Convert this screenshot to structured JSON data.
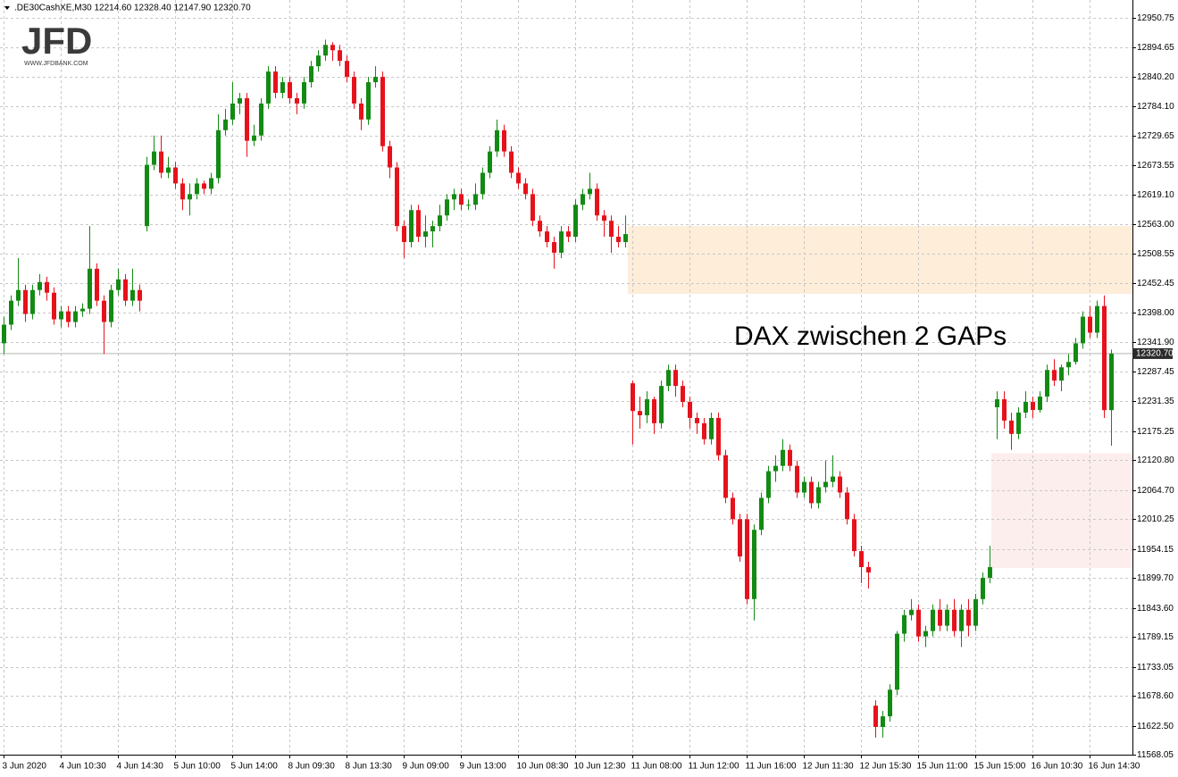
{
  "chart_data": {
    "type": "candlestick",
    "header": ".DE30CashXE,M30  12214.60 12328.40 12147.90 12320.70",
    "logo": {
      "text": "JFD",
      "url": "WWW.JFDBANK.COM"
    },
    "annotation": "DAX zwischen 2 GAPs",
    "up_color": "#138a13",
    "down_color": "#e6121b",
    "grid": true,
    "ylim": [
      11568.05,
      12950.75
    ],
    "yticks": [
      {
        "value": 11568.05,
        "label": "11568.05"
      },
      {
        "value": 11622.5,
        "label": "11622.50"
      },
      {
        "value": 11678.6,
        "label": "11678.60"
      },
      {
        "value": 11733.05,
        "label": "11733.05"
      },
      {
        "value": 11789.15,
        "label": "11789.15"
      },
      {
        "value": 11843.6,
        "label": "11843.60"
      },
      {
        "value": 11899.7,
        "label": "11899.70"
      },
      {
        "value": 11954.15,
        "label": "11954.15"
      },
      {
        "value": 12010.25,
        "label": "12010.25"
      },
      {
        "value": 12064.7,
        "label": "12064.70"
      },
      {
        "value": 12120.8,
        "label": "12120.80"
      },
      {
        "value": 12175.25,
        "label": "12175.25"
      },
      {
        "value": 12231.35,
        "label": "12231.35"
      },
      {
        "value": 12287.45,
        "label": "12287.45"
      },
      {
        "value": 12341.9,
        "label": "12341.90"
      },
      {
        "value": 12398,
        "label": "12398.00"
      },
      {
        "value": 12452.45,
        "label": "12452.45"
      },
      {
        "value": 12508.55,
        "label": "12508.55"
      },
      {
        "value": 12563,
        "label": "12563.00"
      },
      {
        "value": 12619.1,
        "label": "12619.10"
      },
      {
        "value": 12673.55,
        "label": "12673.55"
      },
      {
        "value": 12729.65,
        "label": "12729.65"
      },
      {
        "value": 12784.1,
        "label": "12784.10"
      },
      {
        "value": 12840.2,
        "label": "12840.20"
      },
      {
        "value": 12894.65,
        "label": "12894.65"
      },
      {
        "value": 12950.75,
        "label": "12950.75"
      }
    ],
    "price_label": {
      "value": 12320.7,
      "label": "12320.70"
    },
    "zones": [
      {
        "from": 12433,
        "to": 12560,
        "color": "#fdedd9"
      },
      {
        "from": 11918,
        "to": 12134,
        "color": "#fdeeee"
      }
    ],
    "categories": [
      "3 Jun 2020",
      null,
      null,
      null,
      null,
      null,
      null,
      null,
      "4 Jun 10:30",
      null,
      null,
      null,
      null,
      null,
      null,
      null,
      "4 Jun 14:30",
      null,
      null,
      null,
      null,
      null,
      null,
      null,
      "5 Jun 10:00",
      null,
      null,
      null,
      null,
      null,
      null,
      null,
      "5 Jun 14:00",
      null,
      null,
      null,
      null,
      null,
      null,
      null,
      "8 Jun 09:30",
      null,
      null,
      null,
      null,
      null,
      null,
      null,
      "8 Jun 13:30",
      null,
      null,
      null,
      null,
      null,
      null,
      null,
      "9 Jun 09:00",
      null,
      null,
      null,
      null,
      null,
      null,
      null,
      "9 Jun 13:00",
      null,
      null,
      null,
      null,
      null,
      null,
      null,
      "10 Jun 08:30",
      null,
      null,
      null,
      null,
      null,
      null,
      null,
      "10 Jun 12:30",
      null,
      null,
      null,
      null,
      null,
      null,
      null,
      "11 Jun 08:00",
      null,
      null,
      null,
      null,
      null,
      null,
      null,
      "11 Jun 12:00",
      null,
      null,
      null,
      null,
      null,
      null,
      null,
      "11 Jun 16:00",
      null,
      null,
      null,
      null,
      null,
      null,
      null,
      "12 Jun 11:30",
      null,
      null,
      null,
      null,
      null,
      null,
      null,
      "12 Jun 15:30",
      null,
      null,
      null,
      null,
      null,
      null,
      null,
      "15 Jun 11:00",
      null,
      null,
      null,
      null,
      null,
      null,
      null,
      "15 Jun 15:00",
      null,
      null,
      null,
      null,
      null,
      null,
      null,
      "16 Jun 10:30",
      null,
      null,
      null,
      null,
      null,
      null,
      null,
      "16 Jun 14:30",
      null,
      null,
      null
    ],
    "candles": [
      [
        12340,
        12390,
        12320,
        12375
      ],
      [
        12375,
        12430,
        12365,
        12420
      ],
      [
        12420,
        12500,
        12410,
        12440
      ],
      [
        12440,
        12450,
        12380,
        12395
      ],
      [
        12395,
        12450,
        12385,
        12440
      ],
      [
        12440,
        12470,
        12430,
        12455
      ],
      [
        12455,
        12465,
        12420,
        12435
      ],
      [
        12435,
        12445,
        12375,
        12385
      ],
      [
        12385,
        12410,
        12370,
        12400
      ],
      [
        12400,
        12410,
        12370,
        12380
      ],
      [
        12380,
        12410,
        12370,
        12400
      ],
      [
        12400,
        12415,
        12390,
        12405
      ],
      [
        12405,
        12560,
        12395,
        12480
      ],
      [
        12480,
        12490,
        12410,
        12420
      ],
      [
        12420,
        12430,
        12320,
        12380
      ],
      [
        12380,
        12450,
        12370,
        12440
      ],
      [
        12440,
        12480,
        12430,
        12460
      ],
      [
        12460,
        12470,
        12410,
        12420
      ],
      [
        12420,
        12480,
        12410,
        12440
      ],
      [
        12440,
        12450,
        12400,
        12420
      ],
      [
        12560,
        12690,
        12550,
        12675
      ],
      [
        12675,
        12730,
        12665,
        12700
      ],
      [
        12700,
        12730,
        12650,
        12660
      ],
      [
        12660,
        12690,
        12650,
        12670
      ],
      [
        12670,
        12680,
        12630,
        12640
      ],
      [
        12640,
        12650,
        12590,
        12610
      ],
      [
        12610,
        12640,
        12580,
        12620
      ],
      [
        12620,
        12650,
        12610,
        12640
      ],
      [
        12640,
        12645,
        12620,
        12630
      ],
      [
        12630,
        12660,
        12620,
        12650
      ],
      [
        12650,
        12770,
        12640,
        12740
      ],
      [
        12740,
        12780,
        12730,
        12760
      ],
      [
        12760,
        12830,
        12750,
        12790
      ],
      [
        12790,
        12810,
        12770,
        12800
      ],
      [
        12800,
        12810,
        12690,
        12720
      ],
      [
        12720,
        12750,
        12710,
        12730
      ],
      [
        12730,
        12800,
        12720,
        12790
      ],
      [
        12790,
        12860,
        12780,
        12850
      ],
      [
        12850,
        12860,
        12800,
        12810
      ],
      [
        12810,
        12840,
        12800,
        12830
      ],
      [
        12830,
        12840,
        12790,
        12800
      ],
      [
        12800,
        12810,
        12770,
        12790
      ],
      [
        12790,
        12840,
        12780,
        12830
      ],
      [
        12830,
        12870,
        12820,
        12860
      ],
      [
        12860,
        12890,
        12850,
        12880
      ],
      [
        12880,
        12910,
        12870,
        12900
      ],
      [
        12900,
        12905,
        12870,
        12890
      ],
      [
        12890,
        12900,
        12860,
        12870
      ],
      [
        12870,
        12880,
        12830,
        12840
      ],
      [
        12840,
        12850,
        12780,
        12790
      ],
      [
        12790,
        12800,
        12740,
        12760
      ],
      [
        12760,
        12840,
        12750,
        12830
      ],
      [
        12830,
        12860,
        12820,
        12840
      ],
      [
        12840,
        12850,
        12700,
        12710
      ],
      [
        12710,
        12720,
        12650,
        12670
      ],
      [
        12670,
        12680,
        12550,
        12560
      ],
      [
        12560,
        12570,
        12500,
        12530
      ],
      [
        12530,
        12600,
        12520,
        12590
      ],
      [
        12590,
        12600,
        12530,
        12540
      ],
      [
        12540,
        12580,
        12520,
        12550
      ],
      [
        12550,
        12570,
        12520,
        12560
      ],
      [
        12560,
        12600,
        12550,
        12580
      ],
      [
        12580,
        12620,
        12570,
        12610
      ],
      [
        12610,
        12630,
        12590,
        12620
      ],
      [
        12620,
        12630,
        12590,
        12600
      ],
      [
        12600,
        12610,
        12590,
        12600
      ],
      [
        12600,
        12640,
        12590,
        12620
      ],
      [
        12620,
        12670,
        12610,
        12660
      ],
      [
        12660,
        12710,
        12650,
        12700
      ],
      [
        12700,
        12760,
        12690,
        12740
      ],
      [
        12740,
        12750,
        12690,
        12700
      ],
      [
        12700,
        12710,
        12650,
        12660
      ],
      [
        12660,
        12670,
        12630,
        12640
      ],
      [
        12640,
        12650,
        12610,
        12620
      ],
      [
        12620,
        12630,
        12560,
        12570
      ],
      [
        12570,
        12580,
        12540,
        12550
      ],
      [
        12550,
        12560,
        12520,
        12530
      ],
      [
        12530,
        12540,
        12480,
        12510
      ],
      [
        12510,
        12560,
        12500,
        12550
      ],
      [
        12550,
        12560,
        12530,
        12540
      ],
      [
        12540,
        12610,
        12530,
        12600
      ],
      [
        12600,
        12630,
        12590,
        12620
      ],
      [
        12620,
        12660,
        12610,
        12630
      ],
      [
        12630,
        12640,
        12570,
        12580
      ],
      [
        12580,
        12590,
        12540,
        12570
      ],
      [
        12570,
        12580,
        12510,
        12540
      ],
      [
        12540,
        12560,
        12520,
        12530
      ],
      [
        12530,
        12580,
        12520,
        12545
      ],
      [
        12265,
        12270,
        12150,
        12213
      ],
      [
        12213,
        12240,
        12180,
        12205
      ],
      [
        12205,
        12250,
        12190,
        12235
      ],
      [
        12235,
        12240,
        12170,
        12190
      ],
      [
        12190,
        12270,
        12180,
        12260
      ],
      [
        12260,
        12300,
        12250,
        12290
      ],
      [
        12290,
        12300,
        12240,
        12260
      ],
      [
        12260,
        12270,
        12220,
        12230
      ],
      [
        12230,
        12240,
        12180,
        12200
      ],
      [
        12200,
        12210,
        12170,
        12190
      ],
      [
        12190,
        12200,
        12150,
        12160
      ],
      [
        12160,
        12210,
        12150,
        12200
      ],
      [
        12200,
        12210,
        12120,
        12130
      ],
      [
        12130,
        12140,
        12040,
        12050
      ],
      [
        12050,
        12060,
        12000,
        12010
      ],
      [
        12010,
        12020,
        11930,
        11940
      ],
      [
        12010,
        12020,
        11850,
        11860
      ],
      [
        11860,
        12000,
        11820,
        11990
      ],
      [
        11990,
        12060,
        11980,
        12050
      ],
      [
        12050,
        12110,
        12040,
        12100
      ],
      [
        12100,
        12130,
        12080,
        12110
      ],
      [
        12110,
        12160,
        12100,
        12140
      ],
      [
        12140,
        12150,
        12100,
        12110
      ],
      [
        12110,
        12120,
        12050,
        12060
      ],
      [
        12060,
        12090,
        12050,
        12080
      ],
      [
        12080,
        12090,
        12030,
        12040
      ],
      [
        12040,
        12080,
        12030,
        12070
      ],
      [
        12070,
        12120,
        12060,
        12080
      ],
      [
        12080,
        12130,
        12070,
        12090
      ],
      [
        12090,
        12100,
        12050,
        12060
      ],
      [
        12060,
        12070,
        12000,
        12010
      ],
      [
        12010,
        12020,
        11940,
        11950
      ],
      [
        11950,
        11960,
        11890,
        11920
      ],
      [
        11920,
        11930,
        11880,
        11910
      ],
      [
        11660,
        11670,
        11600,
        11620
      ],
      [
        11620,
        11650,
        11600,
        11640
      ],
      [
        11640,
        11700,
        11630,
        11690
      ],
      [
        11690,
        11800,
        11680,
        11795
      ],
      [
        11795,
        11840,
        11780,
        11830
      ],
      [
        11830,
        11860,
        11820,
        11840
      ],
      [
        11840,
        11850,
        11780,
        11790
      ],
      [
        11790,
        11810,
        11770,
        11800
      ],
      [
        11800,
        11850,
        11790,
        11840
      ],
      [
        11840,
        11860,
        11800,
        11810
      ],
      [
        11810,
        11850,
        11800,
        11840
      ],
      [
        11840,
        11860,
        11790,
        11800
      ],
      [
        11800,
        11850,
        11770,
        11840
      ],
      [
        11840,
        11860,
        11790,
        11810
      ],
      [
        11810,
        11870,
        11800,
        11860
      ],
      [
        11860,
        11910,
        11850,
        11900
      ],
      [
        11900,
        11960,
        11890,
        11920
      ],
      [
        12220,
        12250,
        12160,
        12235
      ],
      [
        12235,
        12250,
        12180,
        12195
      ],
      [
        12195,
        12210,
        12140,
        12170
      ],
      [
        12170,
        12220,
        12160,
        12210
      ],
      [
        12210,
        12250,
        12200,
        12230
      ],
      [
        12230,
        12240,
        12200,
        12215
      ],
      [
        12215,
        12250,
        12210,
        12240
      ],
      [
        12240,
        12300,
        12230,
        12290
      ],
      [
        12290,
        12310,
        12260,
        12270
      ],
      [
        12270,
        12300,
        12250,
        12295
      ],
      [
        12295,
        12320,
        12280,
        12305
      ],
      [
        12305,
        12350,
        12300,
        12340
      ],
      [
        12340,
        12400,
        12330,
        12390
      ],
      [
        12390,
        12410,
        12350,
        12360
      ],
      [
        12360,
        12420,
        12350,
        12410
      ],
      [
        12410,
        12430,
        12200,
        12214.6
      ],
      [
        12214.6,
        12328.4,
        12147.9,
        12320.7
      ]
    ]
  }
}
